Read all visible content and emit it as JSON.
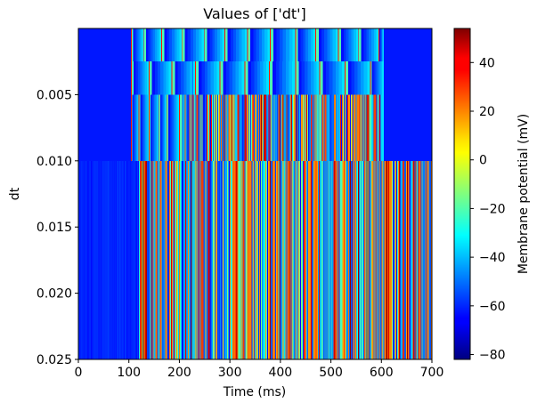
{
  "chart_data": {
    "type": "heatmap",
    "title": "Values of ['dt']",
    "xlabel": "Time (ms)",
    "ylabel": "dt",
    "xlim": [
      0,
      700
    ],
    "ylim": [
      0.025,
      0.0
    ],
    "x_ticks": [
      0,
      100,
      200,
      300,
      400,
      500,
      600,
      700
    ],
    "x_tick_labels": [
      "0",
      "100",
      "200",
      "300",
      "400",
      "500",
      "600",
      "700"
    ],
    "y_ticks": [
      0.005,
      0.01,
      0.015,
      0.02,
      0.025
    ],
    "y_tick_labels": [
      "0.005",
      "0.010",
      "0.015",
      "0.020",
      "0.025"
    ],
    "colormap": "jet",
    "colorbar": {
      "label": "Membrane potential (mV)",
      "range": [
        -82,
        54
      ],
      "ticks": [
        40,
        20,
        0,
        -20,
        -40,
        -60,
        -80
      ],
      "tick_labels": [
        "40",
        "20",
        "0",
        "−20",
        "−40",
        "−60",
        "−80"
      ]
    },
    "rows": [
      {
        "dt_from": 0.0,
        "dt_to": 0.0025,
        "onset_ms": 100,
        "end_ms": 600,
        "spike_times": [
          105,
          130,
          165,
          205,
          250,
          290,
          335,
          380,
          430,
          470,
          515,
          555,
          595
        ],
        "style": "adapting"
      },
      {
        "dt_from": 0.0025,
        "dt_to": 0.005,
        "onset_ms": 100,
        "end_ms": 600,
        "spike_times": [
          105,
          140,
          185,
          232,
          280,
          330,
          378,
          430,
          478,
          528,
          578
        ],
        "style": "adapting"
      },
      {
        "dt_from": 0.005,
        "dt_to": 0.01,
        "onset_ms": 100,
        "end_ms": 600,
        "spike_times": [
          105,
          120,
          140,
          160,
          175,
          200
        ],
        "style": "mixed"
      },
      {
        "dt_from": 0.01,
        "dt_to": 0.025,
        "onset_ms": 120,
        "end_ms": 700,
        "spike_times": [],
        "style": "chaotic"
      }
    ]
  }
}
